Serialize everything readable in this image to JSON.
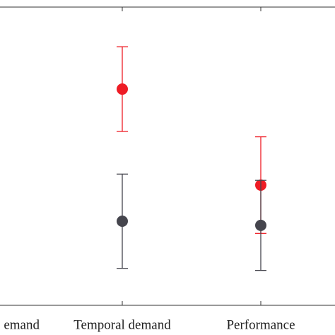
{
  "chart_data": {
    "type": "errorbar",
    "categories": [
      "emand",
      "Temporal demand",
      "Performance"
    ],
    "series": [
      {
        "color": "#ee1c25",
        "values": [
          null,
          72.5,
          40.3
        ],
        "errors": [
          null,
          14.2,
          16.2
        ]
      },
      {
        "color": "#45454d",
        "values": [
          null,
          28.2,
          26.8
        ],
        "errors": [
          null,
          15.8,
          15.1
        ]
      }
    ],
    "ylim": [
      0,
      100
    ]
  }
}
